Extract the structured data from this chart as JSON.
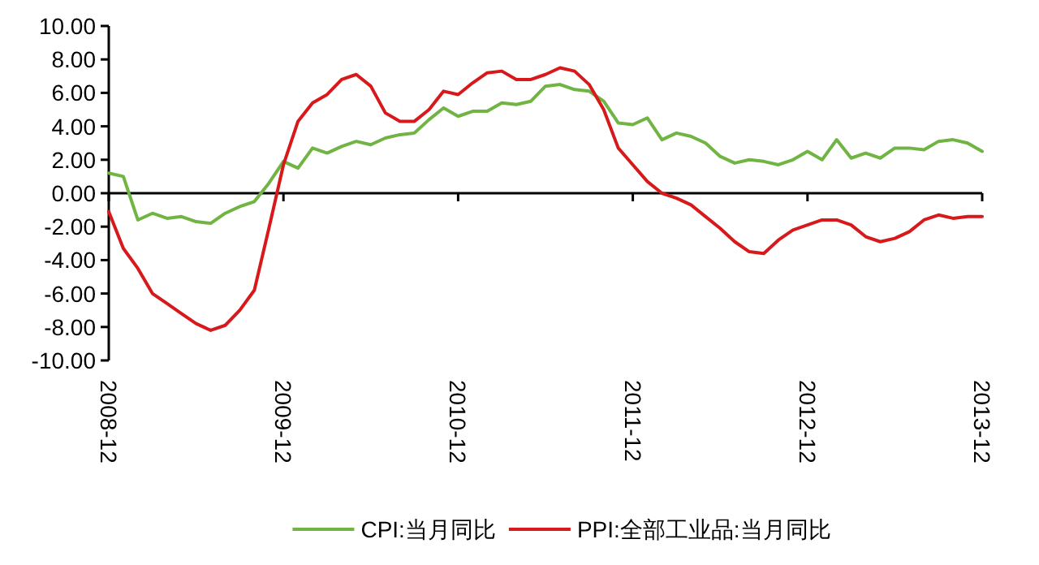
{
  "chart_data": {
    "type": "line",
    "x": [
      "2008-12",
      "2009-01",
      "2009-02",
      "2009-03",
      "2009-04",
      "2009-05",
      "2009-06",
      "2009-07",
      "2009-08",
      "2009-09",
      "2009-10",
      "2009-11",
      "2009-12",
      "2010-01",
      "2010-02",
      "2010-03",
      "2010-04",
      "2010-05",
      "2010-06",
      "2010-07",
      "2010-08",
      "2010-09",
      "2010-10",
      "2010-11",
      "2010-12",
      "2011-01",
      "2011-02",
      "2011-03",
      "2011-04",
      "2011-05",
      "2011-06",
      "2011-07",
      "2011-08",
      "2011-09",
      "2011-10",
      "2011-11",
      "2011-12",
      "2012-01",
      "2012-02",
      "2012-03",
      "2012-04",
      "2012-05",
      "2012-06",
      "2012-07",
      "2012-08",
      "2012-09",
      "2012-10",
      "2012-11",
      "2012-12",
      "2013-01",
      "2013-02",
      "2013-03",
      "2013-04",
      "2013-05",
      "2013-06",
      "2013-07",
      "2013-08",
      "2013-09",
      "2013-10",
      "2013-11",
      "2013-12"
    ],
    "series": [
      {
        "name": "CPI:当月同比",
        "color": "#70b443",
        "values": [
          1.2,
          1.0,
          -1.6,
          -1.2,
          -1.5,
          -1.4,
          -1.7,
          -1.8,
          -1.2,
          -0.8,
          -0.5,
          0.6,
          1.9,
          1.5,
          2.7,
          2.4,
          2.8,
          3.1,
          2.9,
          3.3,
          3.5,
          3.6,
          4.4,
          5.1,
          4.6,
          4.9,
          4.9,
          5.4,
          5.3,
          5.5,
          6.4,
          6.5,
          6.2,
          6.1,
          5.5,
          4.2,
          4.1,
          4.5,
          3.2,
          3.6,
          3.4,
          3.0,
          2.2,
          1.8,
          2.0,
          1.9,
          1.7,
          2.0,
          2.5,
          2.0,
          3.2,
          2.1,
          2.4,
          2.1,
          2.7,
          2.7,
          2.6,
          3.1,
          3.2,
          3.0,
          2.5
        ]
      },
      {
        "name": "PPI:全部工业品:当月同比",
        "color": "#d7191c",
        "values": [
          -1.1,
          -3.3,
          -4.5,
          -6.0,
          -6.6,
          -7.2,
          -7.8,
          -8.2,
          -7.9,
          -7.0,
          -5.8,
          -2.1,
          1.7,
          4.3,
          5.4,
          5.9,
          6.8,
          7.1,
          6.4,
          4.8,
          4.3,
          4.3,
          5.0,
          6.1,
          5.9,
          6.6,
          7.2,
          7.3,
          6.8,
          6.8,
          7.1,
          7.5,
          7.3,
          6.5,
          5.0,
          2.7,
          1.7,
          0.7,
          0.0,
          -0.3,
          -0.7,
          -1.4,
          -2.1,
          -2.9,
          -3.5,
          -3.6,
          -2.8,
          -2.2,
          -1.9,
          -1.6,
          -1.6,
          -1.9,
          -2.6,
          -2.9,
          -2.7,
          -2.3,
          -1.6,
          -1.3,
          -1.5,
          -1.4,
          -1.4
        ]
      }
    ],
    "xlim": [
      "2008-12",
      "2013-12"
    ],
    "xticks": [
      "2008-12",
      "2009-12",
      "2010-12",
      "2011-12",
      "2012-12",
      "2013-12"
    ],
    "ylim": [
      -10,
      10
    ],
    "yticks": [
      {
        "value": -10,
        "label": "-10.00"
      },
      {
        "value": -8,
        "label": "-8.00"
      },
      {
        "value": -6,
        "label": "-6.00"
      },
      {
        "value": -4,
        "label": "-4.00"
      },
      {
        "value": -2,
        "label": "-2.00"
      },
      {
        "value": 0,
        "label": "0.00"
      },
      {
        "value": 2,
        "label": "2.00"
      },
      {
        "value": 4,
        "label": "4.00"
      },
      {
        "value": 6,
        "label": "6.00"
      },
      {
        "value": 8,
        "label": "8.00"
      },
      {
        "value": 10,
        "label": "10.00"
      }
    ],
    "legend": "bottom"
  }
}
